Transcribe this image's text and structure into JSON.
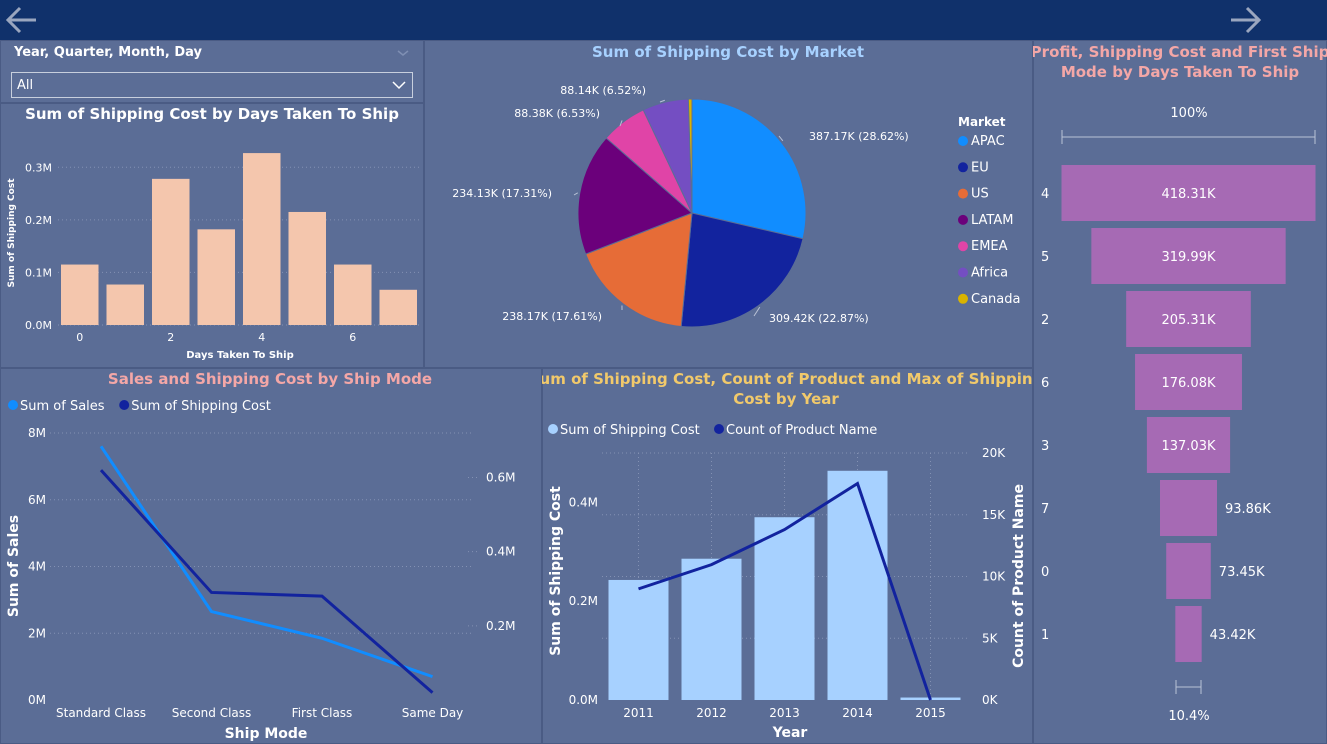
{
  "slicer": {
    "label": "Year, Quarter, Month, Day",
    "value": "All"
  },
  "colors": {
    "topbar": "#10316b",
    "background": "#5b6d96"
  },
  "icons": {
    "back": "arrow-left-icon",
    "forward": "arrow-right-icon"
  },
  "chart_data": [
    {
      "id": "days_bar",
      "type": "bar",
      "title": "Sum of Shipping Cost by Days Taken To Ship",
      "xlabel": "Days Taken To Ship",
      "ylabel": "Sum of Shipping Cost",
      "categories": [
        0,
        1,
        2,
        3,
        4,
        5,
        6,
        7
      ],
      "x_tick_labels": [
        "0",
        "2",
        "4",
        "6"
      ],
      "values": [
        115000,
        77000,
        278000,
        182000,
        327000,
        215000,
        115000,
        67000
      ],
      "y_ticks": [
        "0.0M",
        "0.1M",
        "0.2M",
        "0.3M"
      ],
      "ylim": [
        0,
        350000
      ],
      "color": "#f4c6ad"
    },
    {
      "id": "market_pie",
      "type": "pie",
      "title": "Sum of Shipping Cost by Market",
      "legend_title": "Market",
      "slices": [
        {
          "name": "APAC",
          "value": 387.17,
          "label": "387.17K (28.62%)",
          "color": "#118dff"
        },
        {
          "name": "EU",
          "value": 309.42,
          "label": "309.42K (22.87%)",
          "color": "#12239e"
        },
        {
          "name": "US",
          "value": 238.17,
          "label": "238.17K (17.61%)",
          "color": "#e66c37"
        },
        {
          "name": "LATAM",
          "value": 234.13,
          "label": "234.13K (17.31%)",
          "color": "#6b007b"
        },
        {
          "name": "EMEA",
          "value": 88.38,
          "label": "88.38K (6.53%)",
          "color": "#e044a7"
        },
        {
          "name": "Africa",
          "value": 88.14,
          "label": "88.14K (6.52%)",
          "color": "#744ec2"
        },
        {
          "name": "Canada",
          "value": 6.9,
          "label": "",
          "color": "#d9b300"
        }
      ]
    },
    {
      "id": "funnel",
      "type": "funnel",
      "title_lines": [
        "Profit, Shipping Cost and First Ship",
        "Mode by Days Taken To Ship"
      ],
      "top_label": "100%",
      "bottom_label": "10.4%",
      "color": "#a66ab4",
      "rows": [
        {
          "category": "4",
          "value": 418.31,
          "label": "418.31K"
        },
        {
          "category": "5",
          "value": 319.99,
          "label": "319.99K"
        },
        {
          "category": "2",
          "value": 205.31,
          "label": "205.31K"
        },
        {
          "category": "6",
          "value": 176.08,
          "label": "176.08K"
        },
        {
          "category": "3",
          "value": 137.03,
          "label": "137.03K"
        },
        {
          "category": "7",
          "value": 93.86,
          "label": "93.86K"
        },
        {
          "category": "0",
          "value": 73.45,
          "label": "73.45K"
        },
        {
          "category": "1",
          "value": 43.42,
          "label": "43.42K"
        }
      ]
    },
    {
      "id": "shipmode_line",
      "type": "line",
      "title": "Sales and Shipping Cost by Ship Mode",
      "xlabel": "Ship Mode",
      "ylabel": "Sum of Sales",
      "categories": [
        "Standard Class",
        "Second Class",
        "First Class",
        "Same Day"
      ],
      "series": [
        {
          "name": "Sum of Sales",
          "values": [
            7600000,
            2650000,
            1850000,
            700000
          ],
          "color": "#118dff",
          "axis": "left"
        },
        {
          "name": "Sum of Shipping Cost",
          "values": [
            0.62,
            0.29,
            0.28,
            0.02
          ],
          "color": "#12239e",
          "axis": "right"
        }
      ],
      "left_ticks": [
        "0M",
        "2M",
        "4M",
        "6M",
        "8M"
      ],
      "left_ylim": [
        0,
        8000000
      ],
      "right_ticks": [
        "0.2M",
        "0.4M",
        "0.6M"
      ],
      "right_tick_values": [
        0.2,
        0.4,
        0.6
      ],
      "right_ylim": [
        0,
        0.72
      ]
    },
    {
      "id": "year_combo",
      "type": "bar",
      "title_lines": [
        "Sum of Shipping Cost, Count of Product and Max of Shipping",
        "Cost by Year"
      ],
      "xlabel": "Year",
      "ylabel": "Sum of Shipping Cost",
      "ylabel_right": "Count of Product Name",
      "categories": [
        "2011",
        "2012",
        "2013",
        "2014",
        "2015"
      ],
      "series": [
        {
          "name": "Sum of Shipping Cost",
          "values": [
            243000,
            286000,
            370000,
            464000,
            5000
          ],
          "color": "#a7d1ff",
          "type": "bar"
        },
        {
          "name": "Count of Product Name",
          "values": [
            8998,
            10962,
            13799,
            17531,
            0
          ],
          "color": "#12239e",
          "type": "line"
        }
      ],
      "left_ticks": [
        "0.0M",
        "0.2M",
        "0.4M"
      ],
      "left_ylim": [
        0,
        500000
      ],
      "right_ticks": [
        "0K",
        "5K",
        "10K",
        "15K",
        "20K"
      ],
      "right_ylim": [
        0,
        20000
      ]
    }
  ]
}
